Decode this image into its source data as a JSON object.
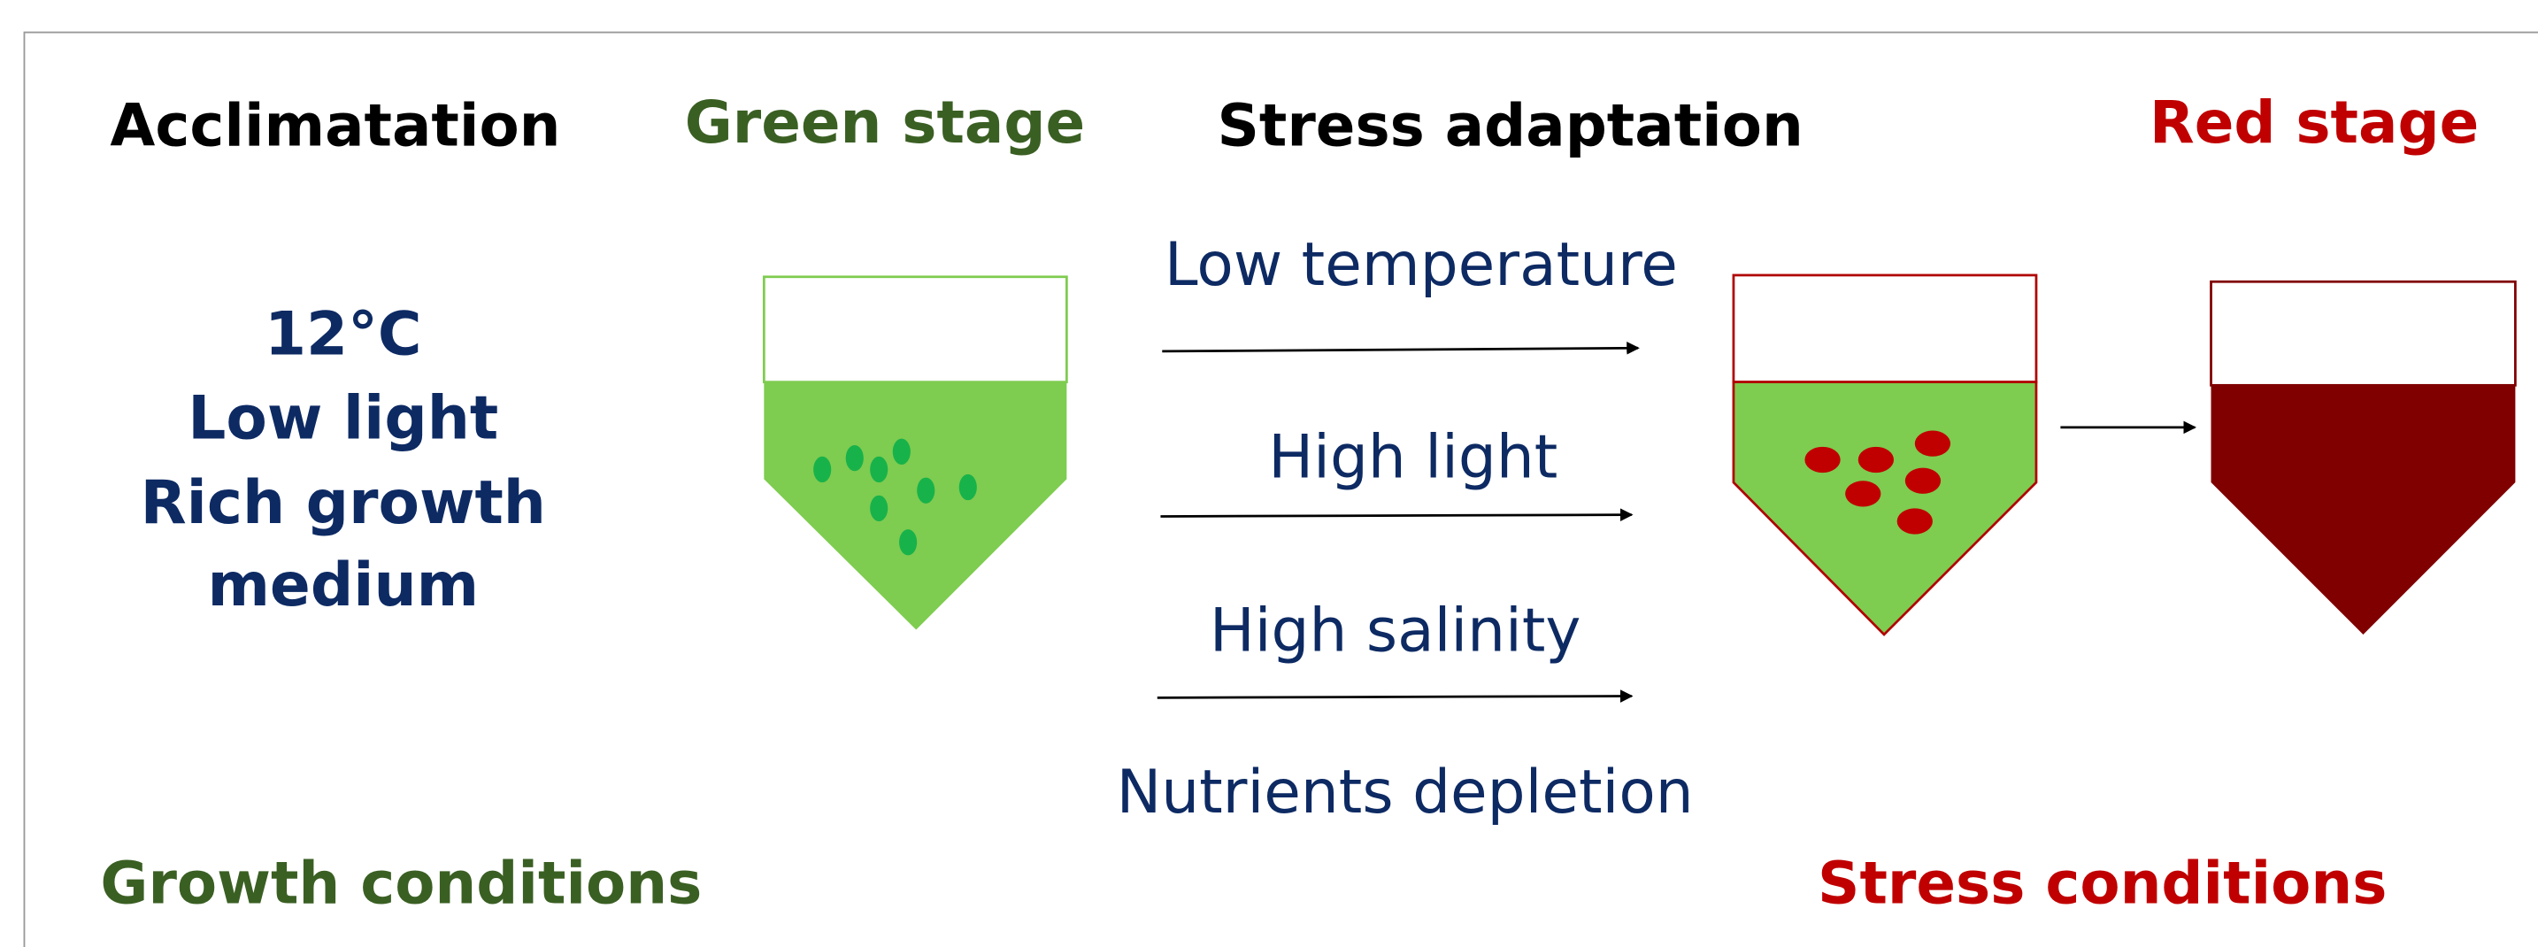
{
  "headers": {
    "acclimatation": "Acclimatation",
    "green_stage": "Green stage",
    "stress_adaptation": "Stress adaptation",
    "red_stage": "Red stage"
  },
  "growth_conditions": {
    "lines": [
      "12°C",
      "Low light",
      "Rich growth",
      "medium"
    ],
    "label": "Growth conditions"
  },
  "stresses": [
    "Low temperature",
    "High light",
    "High salinity",
    "Nutrients depletion"
  ],
  "stress_label": "Stress conditions"
}
